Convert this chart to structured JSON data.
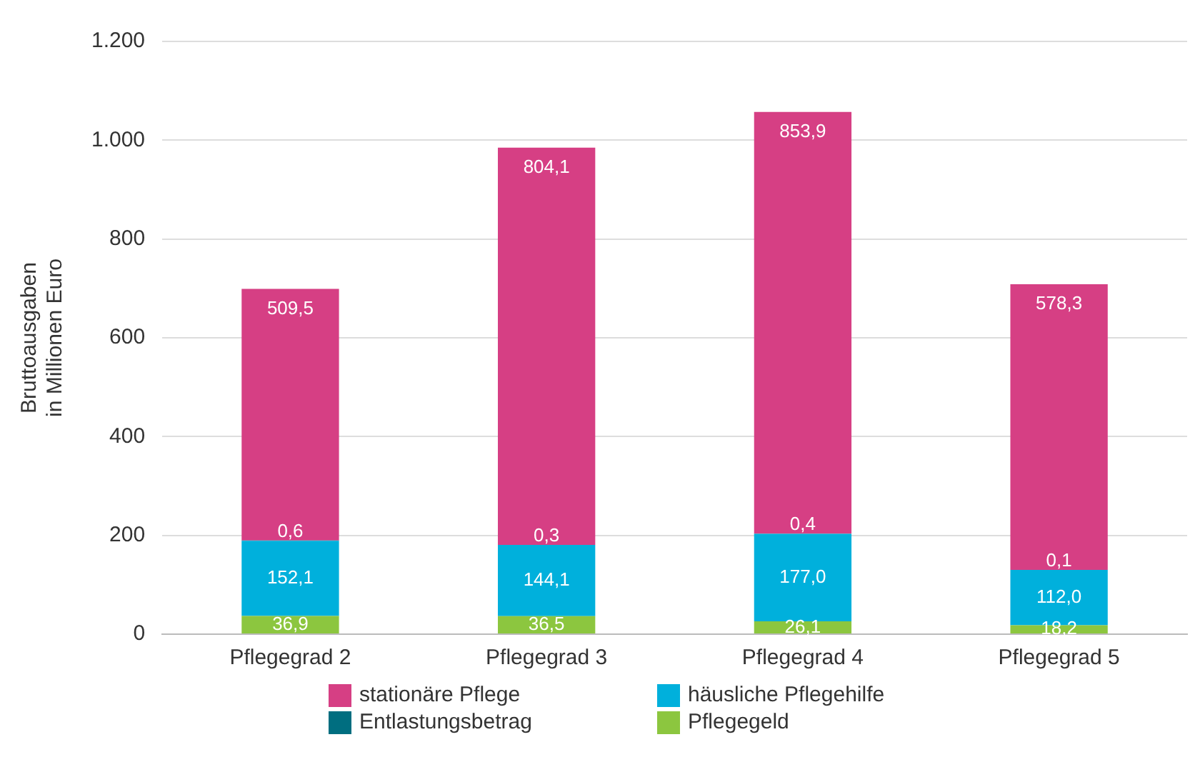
{
  "chart_data": {
    "type": "bar",
    "stacked": true,
    "ylabel": "Bruttoausgaben\nin Millionen Euro",
    "categories": [
      "Pflegegrad 2",
      "Pflegegrad 3",
      "Pflegegrad 4",
      "Pflegegrad 5"
    ],
    "series": [
      {
        "name": "Pflegegeld",
        "color": "#8cc63f",
        "values": [
          36.9,
          36.5,
          26.1,
          18.2
        ],
        "value_labels": [
          "36,9",
          "36,5",
          "26,1",
          "18,2"
        ]
      },
      {
        "name": "häusliche Pflegehilfe",
        "color": "#00b0dc",
        "values": [
          152.1,
          144.1,
          177.0,
          112.0
        ],
        "value_labels": [
          "152,1",
          "144,1",
          "177,0",
          "112,0"
        ]
      },
      {
        "name": "Entlastungsbetrag",
        "color": "#006e80",
        "values": [
          0.6,
          0.3,
          0.4,
          0.1
        ],
        "value_labels": [
          "0,6",
          "0,3",
          "0,4",
          "0,1"
        ]
      },
      {
        "name": "stationäre Pflege",
        "color": "#d63f84",
        "values": [
          509.5,
          804.1,
          853.9,
          578.3
        ],
        "value_labels": [
          "509,5",
          "804,1",
          "853,9",
          "578,3"
        ]
      }
    ],
    "ylim": [
      0,
      1200
    ],
    "yticks": [
      0,
      200,
      400,
      600,
      800,
      {
        "value": 1000,
        "label": "1.000"
      },
      {
        "value": 1200,
        "label": "1.200"
      }
    ],
    "grid": "y",
    "legend": "bottom"
  }
}
